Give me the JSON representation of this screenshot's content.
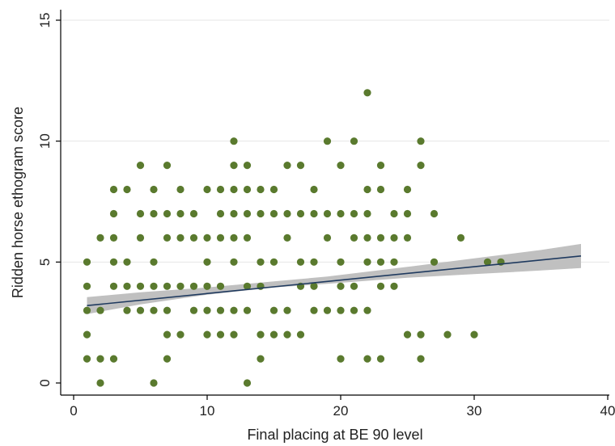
{
  "chart_data": {
    "type": "scatter",
    "xlabel": "Final placing at BE 90 level",
    "ylabel": "Ridden horse ethogram score",
    "xlim": [
      0,
      40
    ],
    "ylim": [
      0,
      15
    ],
    "x_ticks": [
      0,
      10,
      20,
      30,
      40
    ],
    "y_ticks": [
      0,
      5,
      10,
      15
    ],
    "grid": "horizontal",
    "colors": {
      "points": "#5a7a2e",
      "fit_line": "#1f3a5f",
      "confidence_band": "#c0c0c0",
      "grid": "#e6e6e6",
      "axis": "#000000"
    },
    "points": [
      [
        1,
        5
      ],
      [
        1,
        4
      ],
      [
        1,
        3
      ],
      [
        1,
        2
      ],
      [
        1,
        1
      ],
      [
        2,
        6
      ],
      [
        2,
        3
      ],
      [
        2,
        1
      ],
      [
        2,
        0
      ],
      [
        3,
        8
      ],
      [
        3,
        7
      ],
      [
        3,
        6
      ],
      [
        3,
        5
      ],
      [
        3,
        4
      ],
      [
        3,
        1
      ],
      [
        4,
        8
      ],
      [
        4,
        5
      ],
      [
        4,
        4
      ],
      [
        4,
        3
      ],
      [
        5,
        9
      ],
      [
        5,
        7
      ],
      [
        5,
        6
      ],
      [
        5,
        4
      ],
      [
        5,
        3
      ],
      [
        6,
        8
      ],
      [
        6,
        7
      ],
      [
        6,
        5
      ],
      [
        6,
        4
      ],
      [
        6,
        3
      ],
      [
        6,
        0
      ],
      [
        7,
        9
      ],
      [
        7,
        7
      ],
      [
        7,
        6
      ],
      [
        7,
        4
      ],
      [
        7,
        3
      ],
      [
        7,
        2
      ],
      [
        7,
        1
      ],
      [
        8,
        8
      ],
      [
        8,
        7
      ],
      [
        8,
        6
      ],
      [
        8,
        4
      ],
      [
        8,
        2
      ],
      [
        9,
        7
      ],
      [
        9,
        6
      ],
      [
        9,
        4
      ],
      [
        9,
        3
      ],
      [
        10,
        8
      ],
      [
        10,
        6
      ],
      [
        10,
        5
      ],
      [
        10,
        4
      ],
      [
        10,
        3
      ],
      [
        10,
        2
      ],
      [
        11,
        8
      ],
      [
        11,
        7
      ],
      [
        11,
        6
      ],
      [
        11,
        4
      ],
      [
        11,
        3
      ],
      [
        11,
        2
      ],
      [
        12,
        10
      ],
      [
        12,
        9
      ],
      [
        12,
        8
      ],
      [
        12,
        7
      ],
      [
        12,
        6
      ],
      [
        12,
        5
      ],
      [
        12,
        3
      ],
      [
        12,
        2
      ],
      [
        13,
        9
      ],
      [
        13,
        8
      ],
      [
        13,
        7
      ],
      [
        13,
        6
      ],
      [
        13,
        4
      ],
      [
        13,
        3
      ],
      [
        13,
        0
      ],
      [
        14,
        8
      ],
      [
        14,
        7
      ],
      [
        14,
        5
      ],
      [
        14,
        4
      ],
      [
        14,
        2
      ],
      [
        14,
        1
      ],
      [
        15,
        8
      ],
      [
        15,
        7
      ],
      [
        15,
        5
      ],
      [
        15,
        3
      ],
      [
        15,
        2
      ],
      [
        16,
        9
      ],
      [
        16,
        7
      ],
      [
        16,
        6
      ],
      [
        16,
        3
      ],
      [
        16,
        2
      ],
      [
        17,
        9
      ],
      [
        17,
        7
      ],
      [
        17,
        5
      ],
      [
        17,
        4
      ],
      [
        17,
        2
      ],
      [
        18,
        8
      ],
      [
        18,
        7
      ],
      [
        18,
        5
      ],
      [
        18,
        4
      ],
      [
        18,
        3
      ],
      [
        19,
        10
      ],
      [
        19,
        7
      ],
      [
        19,
        6
      ],
      [
        19,
        3
      ],
      [
        20,
        9
      ],
      [
        20,
        7
      ],
      [
        20,
        5
      ],
      [
        20,
        4
      ],
      [
        20,
        3
      ],
      [
        20,
        1
      ],
      [
        21,
        10
      ],
      [
        21,
        7
      ],
      [
        21,
        6
      ],
      [
        21,
        4
      ],
      [
        21,
        3
      ],
      [
        22,
        12
      ],
      [
        22,
        8
      ],
      [
        22,
        7
      ],
      [
        22,
        6
      ],
      [
        22,
        5
      ],
      [
        22,
        3
      ],
      [
        22,
        1
      ],
      [
        23,
        9
      ],
      [
        23,
        8
      ],
      [
        23,
        6
      ],
      [
        23,
        5
      ],
      [
        23,
        4
      ],
      [
        23,
        1
      ],
      [
        24,
        7
      ],
      [
        24,
        6
      ],
      [
        24,
        5
      ],
      [
        24,
        4
      ],
      [
        25,
        8
      ],
      [
        25,
        7
      ],
      [
        25,
        6
      ],
      [
        25,
        2
      ],
      [
        26,
        10
      ],
      [
        26,
        9
      ],
      [
        26,
        2
      ],
      [
        26,
        1
      ],
      [
        27,
        7
      ],
      [
        27,
        5
      ],
      [
        28,
        2
      ],
      [
        29,
        6
      ],
      [
        30,
        2
      ],
      [
        31,
        5
      ],
      [
        32,
        5
      ]
    ],
    "fit": {
      "x": [
        1,
        38
      ],
      "y": [
        3.2,
        5.25
      ]
    },
    "confidence_band": {
      "x": [
        1,
        5,
        10,
        15,
        19,
        25,
        30,
        35,
        38
      ],
      "lower": [
        2.85,
        3.25,
        3.65,
        3.95,
        4.1,
        4.35,
        4.5,
        4.65,
        4.75
      ],
      "upper": [
        3.55,
        3.75,
        3.95,
        4.2,
        4.4,
        4.8,
        5.15,
        5.5,
        5.75
      ]
    }
  }
}
